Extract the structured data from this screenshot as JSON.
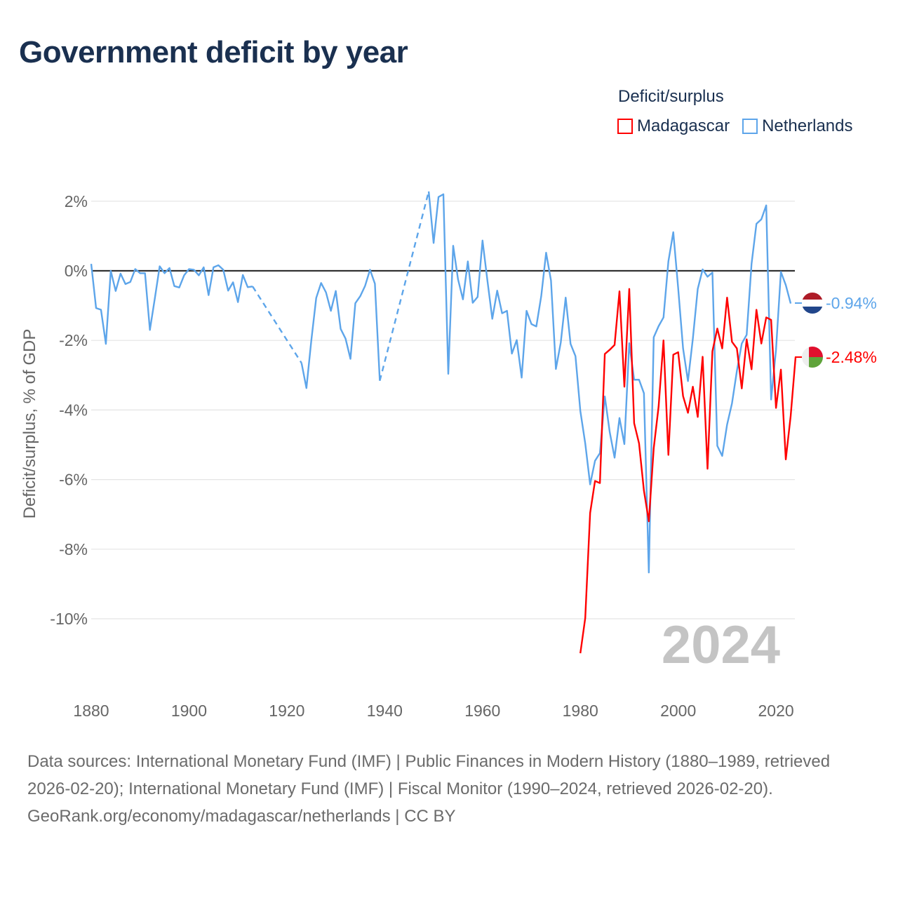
{
  "title": "Government deficit by year",
  "legend": {
    "title": "Deficit/surplus",
    "items": [
      {
        "label": "Madagascar",
        "color": "#ff0000"
      },
      {
        "label": "Netherlands",
        "color": "#5da5ea"
      }
    ]
  },
  "year_watermark": "2024",
  "end_labels": {
    "netherlands": "-0.94%",
    "madagascar": "-2.48%"
  },
  "footer": {
    "sources": "Data sources: International Monetary Fund (IMF) | Public Finances in Modern History (1880–1989, retrieved 2026-02-20); International Monetary Fund (IMF) | Fiscal Monitor (1990–2024, retrieved 2026-02-20).",
    "credit": "GeoRank.org/economy/madagascar/netherlands | CC BY"
  },
  "chart_data": {
    "type": "line",
    "title": "Government deficit by year",
    "xlabel": "",
    "ylabel": "Deficit/surplus, % of GDP",
    "xlim": [
      1880,
      2024
    ],
    "ylim": [
      -12,
      3
    ],
    "xticks": [
      1880,
      1900,
      1920,
      1940,
      1960,
      1980,
      2000,
      2020
    ],
    "xtick_labels": [
      "1880",
      "1900",
      "1920",
      "1940",
      "1960",
      "1980",
      "2000",
      "2020"
    ],
    "yticks": [
      2,
      0,
      -2,
      -4,
      -6,
      -8,
      -10
    ],
    "ytick_labels": [
      "2%",
      "0%",
      "-2%",
      "-4%",
      "-6%",
      "-8%",
      "-10%"
    ],
    "grid": true,
    "legend_position": "top-right",
    "series": [
      {
        "name": "Netherlands",
        "color": "#5da5ea",
        "start_year": 1880,
        "values": [
          0.2,
          -1.07,
          -1.12,
          -2.1,
          0,
          -0.58,
          -0.08,
          -0.38,
          -0.32,
          0.05,
          -0.07,
          -0.07,
          -1.7,
          -0.8,
          0.13,
          -0.07,
          0.08,
          -0.44,
          -0.48,
          -0.13,
          0.05,
          0.03,
          -0.13,
          0.1,
          -0.7,
          0.1,
          0.16,
          0.03,
          -0.57,
          -0.33,
          -0.9,
          -0.12,
          -0.47,
          -0.45,
          null,
          null,
          null,
          null,
          null,
          null,
          null,
          null,
          null,
          -2.65,
          -3.37,
          -2.0,
          -0.78,
          -0.35,
          -0.62,
          -1.15,
          -0.58,
          -1.67,
          -1.95,
          -2.53,
          -0.93,
          -0.73,
          -0.43,
          0.03,
          -0.37,
          -3.16,
          null,
          null,
          null,
          null,
          null,
          null,
          null,
          null,
          null,
          2.28,
          0.8,
          2.12,
          2.2,
          -2.96,
          0.72,
          -0.25,
          -0.82,
          0.27,
          -0.92,
          -0.75,
          0.87,
          -0.28,
          -1.38,
          -0.57,
          -1.22,
          -1.15,
          -2.38,
          -1.99,
          -3.07,
          -1.15,
          -1.53,
          -1.6,
          -0.73,
          0.52,
          -0.28,
          -2.82,
          -2.06,
          -0.77,
          -2.1,
          -2.45,
          -4.03,
          -4.96,
          -6.14,
          -5.46,
          -5.24,
          -3.61,
          -4.63,
          -5.37,
          -4.23,
          -4.98,
          -2.08,
          -3.13,
          -3.13,
          -3.52,
          -8.67,
          -1.91,
          -1.59,
          -1.34,
          0.27,
          1.11,
          -0.5,
          -2.23,
          -3.17,
          -1.95,
          -0.52,
          0.04,
          -0.17,
          -0.05,
          -5.03,
          -5.32,
          -4.42,
          -3.81,
          -2.88,
          -2.09,
          -1.84,
          0.2,
          1.35,
          1.48,
          1.88,
          -3.7,
          -2.27,
          -0.03,
          -0.41,
          -0.94
        ]
      },
      {
        "name": "Madagascar",
        "color": "#ff0000",
        "start_year": 1980,
        "values": [
          -10.99,
          -9.98,
          -6.96,
          -6.04,
          -6.1,
          -2.39,
          -2.27,
          -2.13,
          -0.59,
          -3.33,
          -0.52,
          -4.38,
          -4.96,
          -6.32,
          -7.2,
          -5.1,
          -3.9,
          -2.0,
          -5.29,
          -2.41,
          -2.34,
          -3.6,
          -4.08,
          -3.33,
          -4.2,
          -2.47,
          -5.69,
          -2.31,
          -1.66,
          -2.23,
          -0.77,
          -2.04,
          -2.23,
          -3.38,
          -1.97,
          -2.83,
          -1.12,
          -2.09,
          -1.34,
          -1.41,
          -3.94,
          -2.84,
          -5.42,
          -4.17,
          -2.48
        ]
      }
    ]
  }
}
